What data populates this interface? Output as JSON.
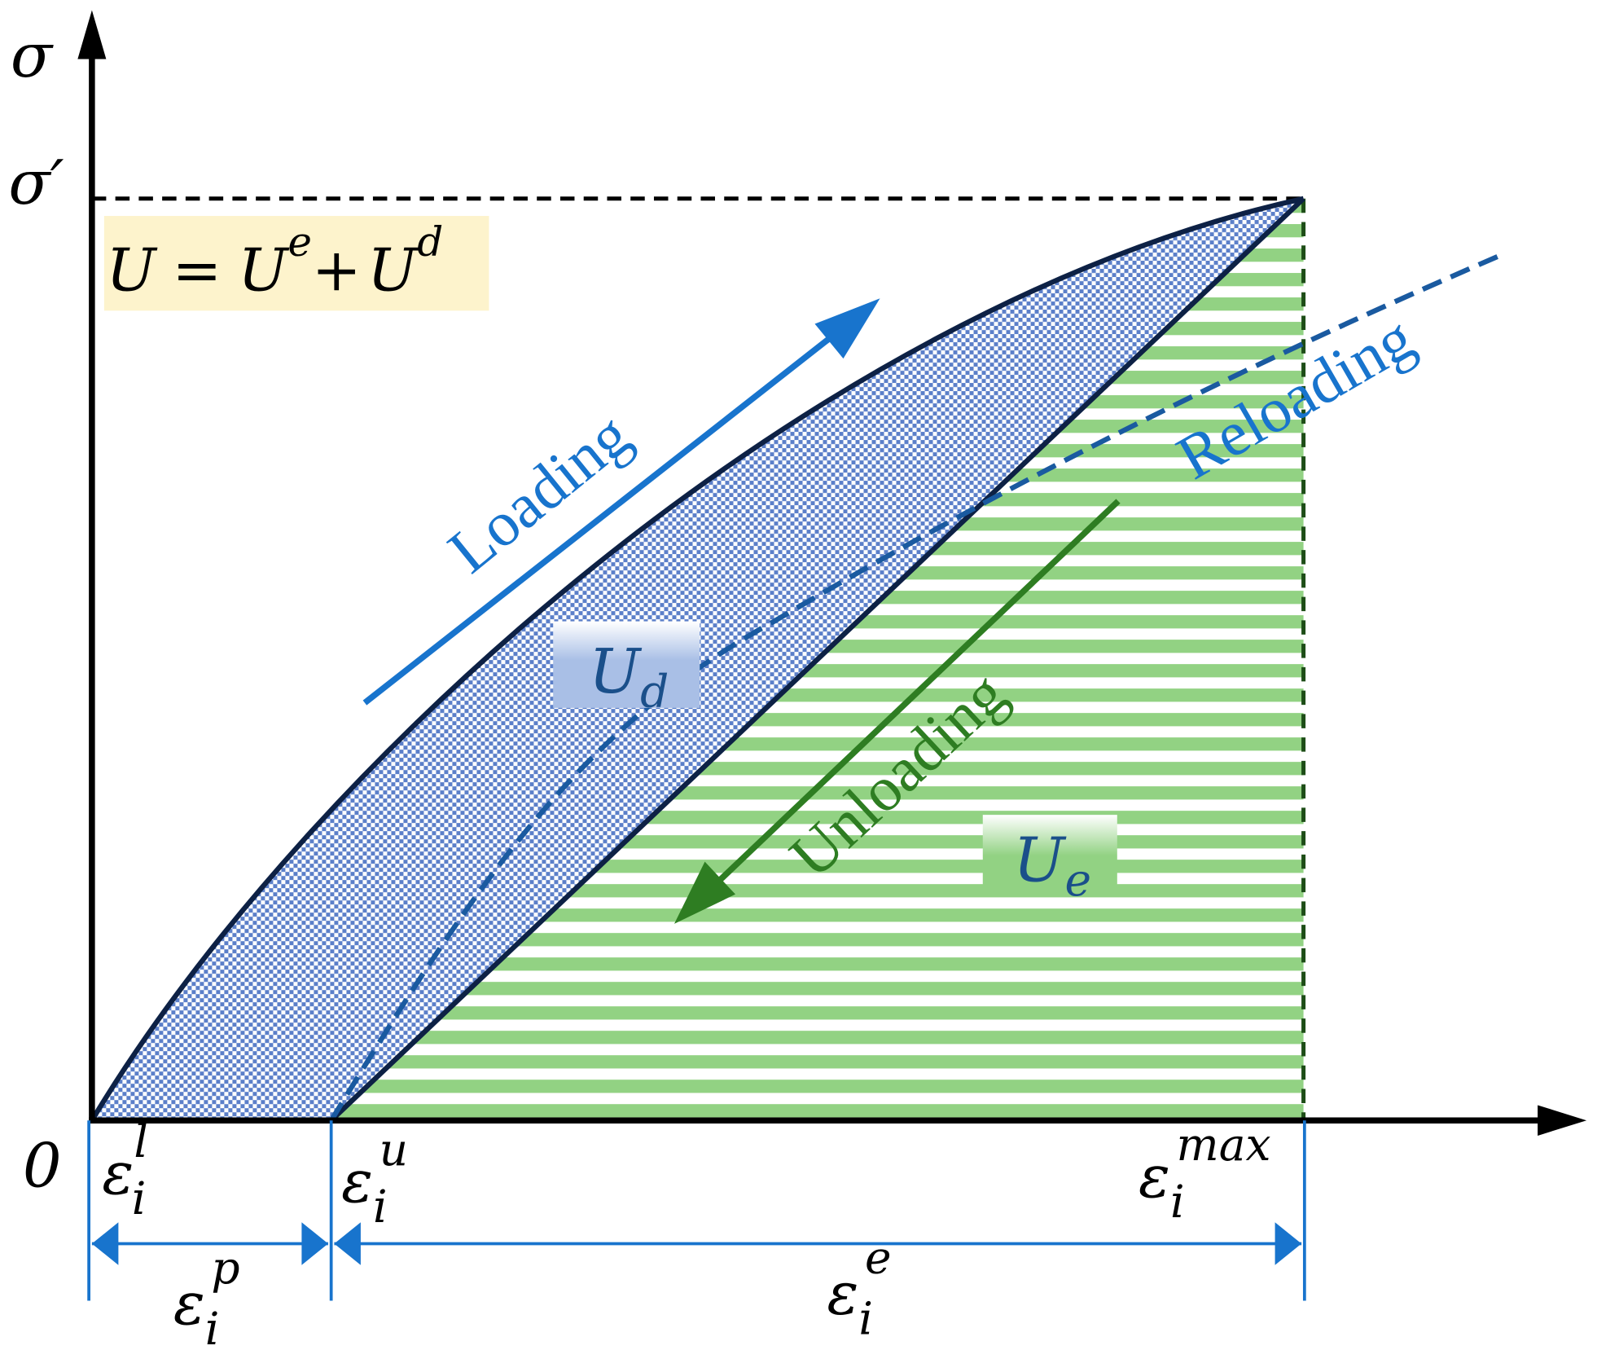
{
  "axes": {
    "y_label": "σ",
    "x_label": "",
    "y_mark": "σ′",
    "origin": "0"
  },
  "formula": {
    "lhs": "U",
    "eq": "=",
    "t1": "U",
    "t1_sup": "e",
    "plus": "+",
    "t2": "U",
    "t2_sup": "d"
  },
  "curves": {
    "loading": "Loading",
    "unloading": "Unloading",
    "reloading": "Reloading"
  },
  "areas": {
    "ud_base": "U",
    "ud_sub": "d",
    "ue_base": "U",
    "ue_sub": "e"
  },
  "strain_labels": {
    "el": {
      "base": "ε",
      "sub": "i",
      "sup": "l"
    },
    "eu": {
      "base": "ε",
      "sub": "i",
      "sup": "u"
    },
    "emax": {
      "base": "ε",
      "sub": "i",
      "sup": "max"
    },
    "ep": {
      "base": "ε",
      "sub": "i",
      "sup": "p"
    },
    "ee": {
      "base": "ε",
      "sub": "i",
      "sup": "e"
    }
  },
  "colors": {
    "curve": "#0d2145",
    "dissipated_fill": "#5b7fc9",
    "elastic_stripe": "#92d283",
    "loading_arrow": "#1874cd",
    "unloading_arrow": "#2e7d22",
    "reloading_dash": "#1a5aa0",
    "formula_bg": "#fdf3cc",
    "dimension": "#1874cd"
  }
}
